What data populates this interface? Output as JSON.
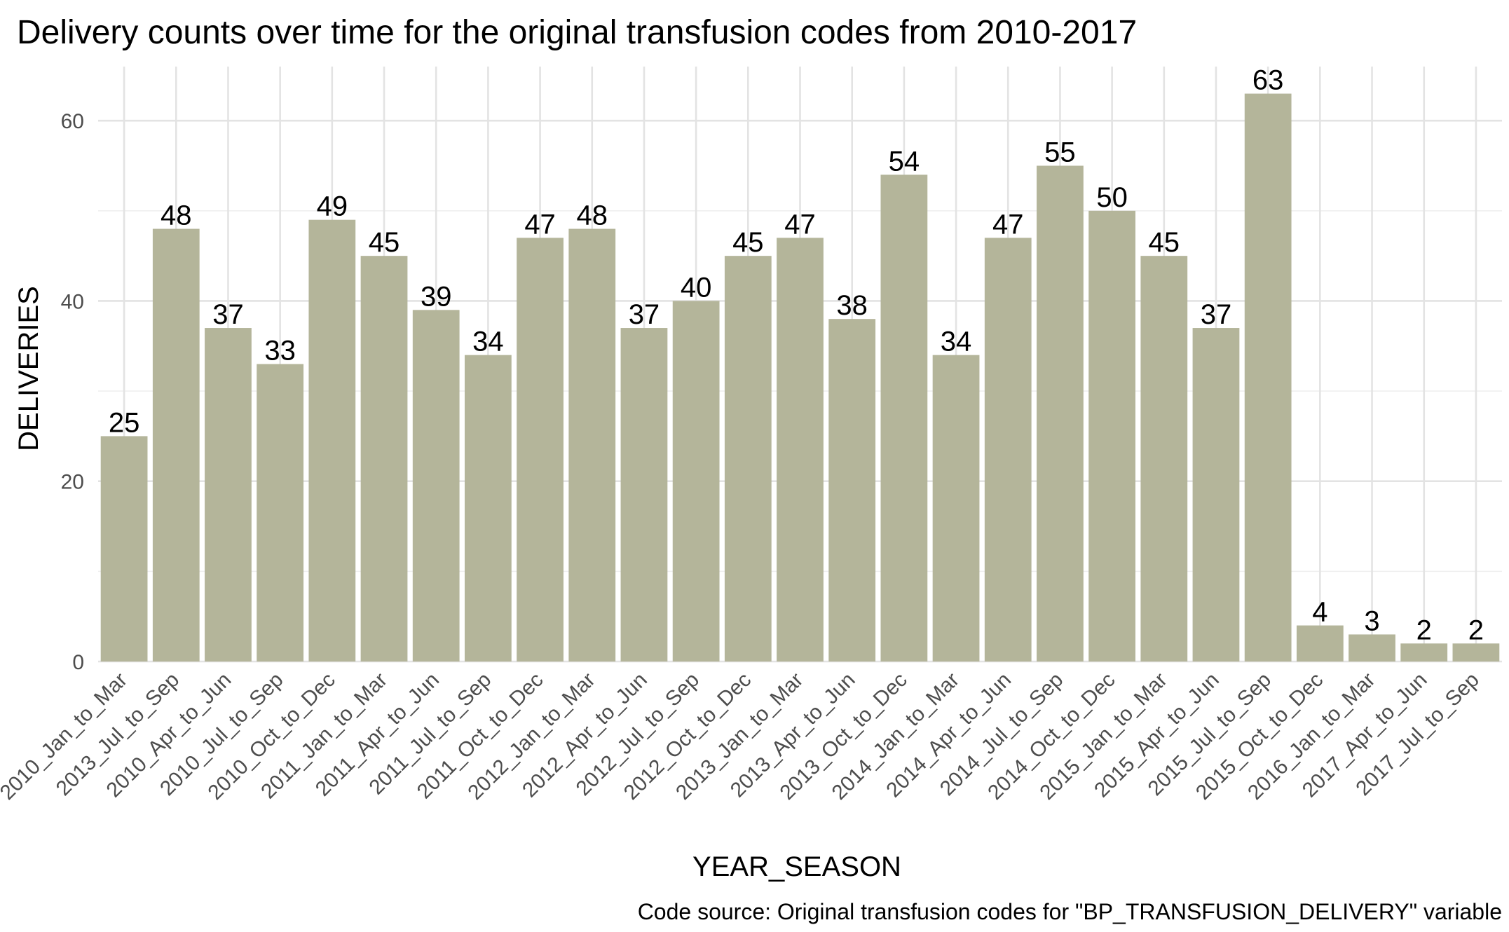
{
  "chart_data": {
    "type": "bar",
    "title": "Delivery counts over time for the original transfusion codes from 2010-2017",
    "xlabel": "YEAR_SEASON",
    "ylabel": "DELIVERIES",
    "caption": "Code source: Original transfusion codes for \"BP_TRANSFUSION_DELIVERY\" variable",
    "categories": [
      "2010_Jan_to_Mar",
      "2013_Jul_to_Sep",
      "2010_Apr_to_Jun",
      "2010_Jul_to_Sep",
      "2010_Oct_to_Dec",
      "2011_Jan_to_Mar",
      "2011_Apr_to_Jun",
      "2011_Jul_to_Sep",
      "2011_Oct_to_Dec",
      "2012_Jan_to_Mar",
      "2012_Apr_to_Jun",
      "2012_Jul_to_Sep",
      "2012_Oct_to_Dec",
      "2013_Jan_to_Mar",
      "2013_Apr_to_Jun",
      "2013_Oct_to_Dec",
      "2014_Jan_to_Mar",
      "2014_Apr_to_Jun",
      "2014_Jul_to_Sep",
      "2014_Oct_to_Dec",
      "2015_Jan_to_Mar",
      "2015_Apr_to_Jun",
      "2015_Jul_to_Sep",
      "2015_Oct_to_Dec",
      "2016_Jan_to_Mar",
      "2017_Apr_to_Jun",
      "2017_Jul_to_Sep"
    ],
    "values": [
      25,
      48,
      37,
      33,
      49,
      45,
      39,
      34,
      47,
      48,
      37,
      40,
      45,
      47,
      38,
      54,
      34,
      47,
      55,
      50,
      45,
      37,
      63,
      4,
      3,
      2,
      2
    ],
    "ylim": [
      0,
      66
    ],
    "yticks": [
      0,
      20,
      40,
      60
    ],
    "grid": true,
    "legend": "none",
    "bar_color": "#b4b59a",
    "grid_color": "#e3e3e3"
  }
}
